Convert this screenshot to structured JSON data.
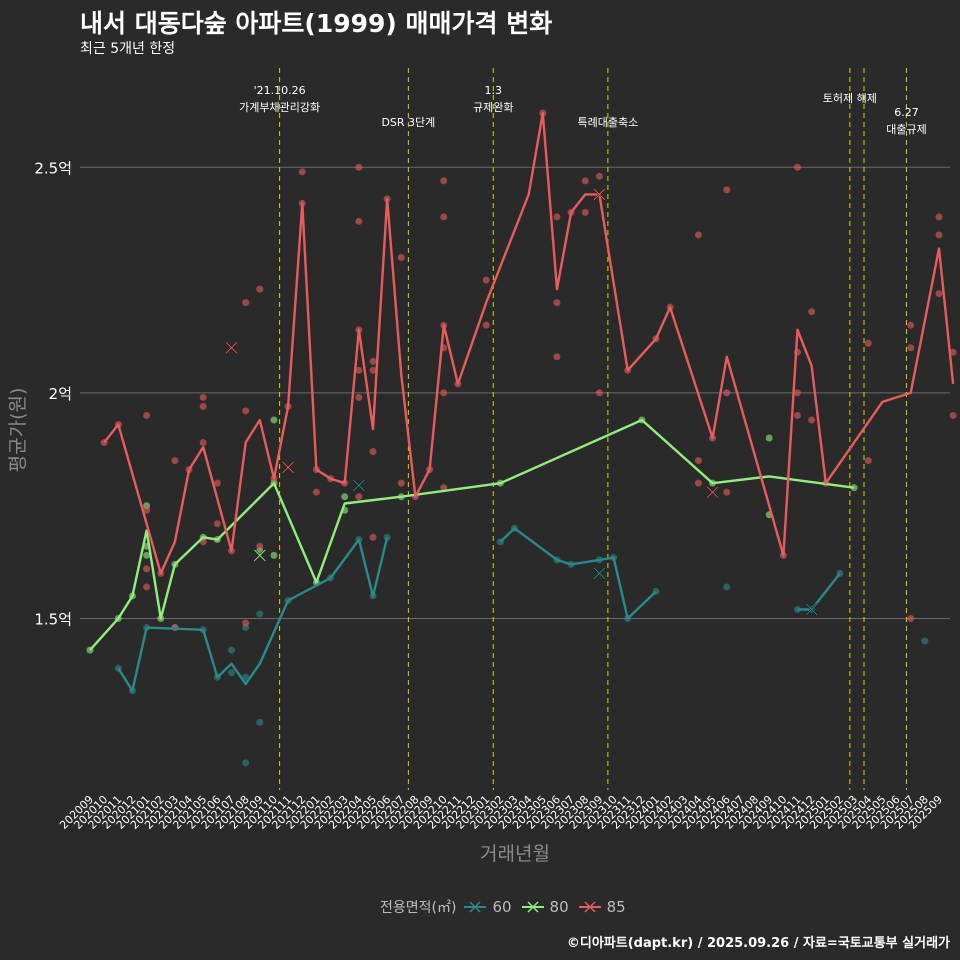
{
  "title": "내서 대동다숲 아파트(1999) 매매가격 변화",
  "subtitle": "최근 5개년 한정",
  "credit": "©디아파트(dapt.kr) / 2025.09.26 / 자료=국토교통부 실거래가",
  "colors": {
    "s60": "#2a8a8a",
    "s80": "#90ee7e",
    "s85": "#e85c5c",
    "event": "#d4d400",
    "grid": "#6a6a6a",
    "bg": "#2b2a2b"
  },
  "chart_data": {
    "type": "line",
    "title": "내서 대동다숲 아파트(1999) 매매가격 변화",
    "subtitle": "최근 5개년 한정",
    "xlabel": "거래년월",
    "ylabel": "평균가(원)",
    "ylim": [
      1.12,
      2.72
    ],
    "yticks": [
      {
        "v": 1.5,
        "label": "1.5억"
      },
      {
        "v": 2.0,
        "label": "2억"
      },
      {
        "v": 2.5,
        "label": "2.5억"
      }
    ],
    "categories": [
      "202009",
      "202010",
      "202011",
      "202012",
      "202101",
      "202102",
      "202103",
      "202104",
      "202105",
      "202106",
      "202107",
      "202108",
      "202109",
      "202110",
      "202111",
      "202112",
      "202201",
      "202202",
      "202203",
      "202204",
      "202205",
      "202206",
      "202207",
      "202208",
      "202209",
      "202210",
      "202211",
      "202212",
      "202301",
      "202302",
      "202303",
      "202304",
      "202305",
      "202306",
      "202307",
      "202308",
      "202309",
      "202310",
      "202311",
      "202312",
      "202401",
      "202402",
      "202403",
      "202404",
      "202405",
      "202406",
      "202407",
      "202408",
      "202409",
      "202410",
      "202411",
      "202412",
      "202501",
      "202502",
      "202503",
      "202504",
      "202505",
      "202506",
      "202507",
      "202508",
      "202509"
    ],
    "legend_title": "전용면적(㎡)",
    "series": [
      {
        "name": "60",
        "key": "s60",
        "line": [
          [
            2,
            1.39
          ],
          [
            3,
            1.34
          ],
          [
            4,
            1.48
          ],
          [
            8,
            1.475
          ],
          [
            9,
            1.37
          ],
          [
            10,
            1.4
          ],
          [
            11,
            1.355
          ],
          [
            12,
            1.4
          ],
          [
            14,
            1.54
          ],
          [
            17,
            1.59
          ],
          [
            19,
            1.675
          ],
          [
            20,
            1.55
          ],
          [
            21,
            1.68
          ],
          [
            null,
            null
          ],
          [
            29,
            1.67
          ],
          [
            30,
            1.7
          ],
          [
            33,
            1.63
          ],
          [
            34,
            1.62
          ],
          [
            36,
            1.63
          ],
          [
            37,
            1.635
          ],
          [
            38,
            1.5
          ],
          [
            40,
            1.56
          ],
          [
            null,
            null
          ],
          [
            50,
            1.52
          ],
          [
            51,
            1.52
          ],
          [
            53,
            1.6
          ]
        ],
        "points": [
          [
            2,
            1.39
          ],
          [
            3,
            1.34
          ],
          [
            4,
            1.48
          ],
          [
            6,
            1.48
          ],
          [
            8,
            1.475
          ],
          [
            9,
            1.37
          ],
          [
            10,
            1.43
          ],
          [
            10,
            1.38
          ],
          [
            11,
            1.48
          ],
          [
            11,
            1.37
          ],
          [
            11,
            1.18
          ],
          [
            12,
            1.51
          ],
          [
            12,
            1.27
          ],
          [
            14,
            1.54
          ],
          [
            17,
            1.59
          ],
          [
            19,
            1.675
          ],
          [
            20,
            1.55
          ],
          [
            21,
            1.68
          ],
          [
            29,
            1.67
          ],
          [
            30,
            1.7
          ],
          [
            33,
            1.63
          ],
          [
            34,
            1.62
          ],
          [
            36,
            1.63
          ],
          [
            37,
            1.635
          ],
          [
            38,
            1.5
          ],
          [
            40,
            1.56
          ],
          [
            45,
            1.57
          ],
          [
            50,
            1.52
          ],
          [
            51,
            1.52
          ],
          [
            53,
            1.6
          ],
          [
            59,
            1.45
          ]
        ],
        "crosses": [
          [
            19,
            1.795
          ],
          [
            36,
            1.6
          ],
          [
            51,
            1.52
          ]
        ]
      },
      {
        "name": "80",
        "key": "s80",
        "line": [
          [
            0,
            1.43
          ],
          [
            2,
            1.5
          ],
          [
            3,
            1.55
          ],
          [
            4,
            1.695
          ],
          [
            5,
            1.5
          ],
          [
            6,
            1.62
          ],
          [
            8,
            1.68
          ],
          [
            9,
            1.675
          ],
          [
            13,
            1.8
          ],
          [
            16,
            1.58
          ],
          [
            18,
            1.755
          ],
          [
            22,
            1.77
          ],
          [
            29,
            1.8
          ],
          [
            39,
            1.94
          ],
          [
            44,
            1.8
          ],
          [
            48,
            1.815
          ],
          [
            54,
            1.79
          ]
        ],
        "points": [
          [
            0,
            1.43
          ],
          [
            2,
            1.5
          ],
          [
            3,
            1.55
          ],
          [
            4,
            1.75
          ],
          [
            4,
            1.66
          ],
          [
            4,
            1.64
          ],
          [
            5,
            1.5
          ],
          [
            6,
            1.62
          ],
          [
            8,
            1.68
          ],
          [
            9,
            1.675
          ],
          [
            12,
            1.65
          ],
          [
            13,
            1.8
          ],
          [
            13,
            1.94
          ],
          [
            13,
            1.64
          ],
          [
            16,
            1.58
          ],
          [
            18,
            1.77
          ],
          [
            18,
            1.74
          ],
          [
            22,
            1.77
          ],
          [
            29,
            1.8
          ],
          [
            39,
            1.94
          ],
          [
            44,
            1.8
          ],
          [
            48,
            1.9
          ],
          [
            48,
            1.73
          ],
          [
            54,
            1.79
          ]
        ],
        "crosses": [
          [
            12,
            1.64
          ]
        ]
      },
      {
        "name": "85",
        "key": "s85",
        "line": [
          [
            1,
            1.89
          ],
          [
            2,
            1.93
          ],
          [
            5,
            1.6
          ],
          [
            6,
            1.67
          ],
          [
            7,
            1.83
          ],
          [
            8,
            1.88
          ],
          [
            10,
            1.65
          ],
          [
            11,
            1.89
          ],
          [
            12,
            1.94
          ],
          [
            13,
            1.81
          ],
          [
            14,
            1.97
          ],
          [
            15,
            2.42
          ],
          [
            16,
            1.83
          ],
          [
            17,
            1.81
          ],
          [
            18,
            1.8
          ],
          [
            19,
            2.14
          ],
          [
            20,
            1.92
          ],
          [
            21,
            2.43
          ],
          [
            22,
            2.04
          ],
          [
            23,
            1.77
          ],
          [
            24,
            1.83
          ],
          [
            25,
            2.15
          ],
          [
            26,
            2.02
          ],
          [
            28,
            2.2
          ],
          [
            31,
            2.44
          ],
          [
            32,
            2.62
          ],
          [
            33,
            2.23
          ],
          [
            34,
            2.4
          ],
          [
            35,
            2.44
          ],
          [
            36,
            2.44
          ],
          [
            38,
            2.05
          ],
          [
            40,
            2.12
          ],
          [
            41,
            2.19
          ],
          [
            44,
            1.9
          ],
          [
            45,
            2.08
          ],
          [
            49,
            1.64
          ],
          [
            50,
            2.14
          ],
          [
            51,
            2.06
          ],
          [
            52,
            1.8
          ],
          [
            56,
            1.98
          ],
          [
            58,
            2.0
          ],
          [
            60,
            2.32
          ],
          [
            61,
            2.02
          ]
        ],
        "points": [
          [
            1,
            1.89
          ],
          [
            2,
            1.93
          ],
          [
            4,
            1.95
          ],
          [
            4,
            1.74
          ],
          [
            4,
            1.57
          ],
          [
            4,
            1.61
          ],
          [
            5,
            1.6
          ],
          [
            6,
            1.85
          ],
          [
            6,
            1.48
          ],
          [
            7,
            1.83
          ],
          [
            8,
            1.99
          ],
          [
            8,
            1.97
          ],
          [
            8,
            1.89
          ],
          [
            8,
            1.67
          ],
          [
            9,
            1.8
          ],
          [
            9,
            1.71
          ],
          [
            10,
            1.65
          ],
          [
            11,
            2.2
          ],
          [
            11,
            1.96
          ],
          [
            11,
            1.49
          ],
          [
            12,
            2.23
          ],
          [
            12,
            1.66
          ],
          [
            13,
            1.81
          ],
          [
            14,
            1.97
          ],
          [
            15,
            2.49
          ],
          [
            15,
            2.42
          ],
          [
            16,
            1.83
          ],
          [
            16,
            1.78
          ],
          [
            17,
            1.81
          ],
          [
            18,
            1.8
          ],
          [
            19,
            2.5
          ],
          [
            19,
            2.38
          ],
          [
            19,
            2.14
          ],
          [
            19,
            2.05
          ],
          [
            19,
            1.99
          ],
          [
            19,
            1.77
          ],
          [
            20,
            2.07
          ],
          [
            20,
            2.05
          ],
          [
            20,
            1.87
          ],
          [
            20,
            1.68
          ],
          [
            21,
            2.43
          ],
          [
            22,
            2.3
          ],
          [
            22,
            1.8
          ],
          [
            23,
            1.77
          ],
          [
            24,
            1.83
          ],
          [
            25,
            2.47
          ],
          [
            25,
            2.39
          ],
          [
            25,
            2.15
          ],
          [
            25,
            2.1
          ],
          [
            25,
            2.0
          ],
          [
            25,
            1.79
          ],
          [
            26,
            2.02
          ],
          [
            28,
            2.25
          ],
          [
            28,
            2.15
          ],
          [
            32,
            2.62
          ],
          [
            33,
            2.39
          ],
          [
            33,
            2.2
          ],
          [
            33,
            2.08
          ],
          [
            34,
            2.4
          ],
          [
            35,
            2.47
          ],
          [
            35,
            2.4
          ],
          [
            36,
            2.48
          ],
          [
            36,
            2.0
          ],
          [
            38,
            2.05
          ],
          [
            40,
            2.12
          ],
          [
            41,
            2.19
          ],
          [
            43,
            2.35
          ],
          [
            43,
            1.85
          ],
          [
            43,
            1.8
          ],
          [
            44,
            1.9
          ],
          [
            45,
            2.45
          ],
          [
            45,
            2.0
          ],
          [
            45,
            1.78
          ],
          [
            49,
            1.64
          ],
          [
            50,
            2.5
          ],
          [
            50,
            2.09
          ],
          [
            50,
            2.0
          ],
          [
            50,
            1.95
          ],
          [
            51,
            2.18
          ],
          [
            51,
            1.94
          ],
          [
            52,
            1.8
          ],
          [
            55,
            2.11
          ],
          [
            55,
            1.85
          ],
          [
            58,
            2.15
          ],
          [
            58,
            2.1
          ],
          [
            58,
            1.5
          ],
          [
            60,
            2.39
          ],
          [
            60,
            2.35
          ],
          [
            60,
            2.22
          ],
          [
            61,
            2.09
          ],
          [
            61,
            1.95
          ]
        ],
        "crosses": [
          [
            10,
            2.1
          ],
          [
            14,
            1.835
          ],
          [
            36,
            2.44
          ],
          [
            44,
            1.78
          ]
        ]
      }
    ],
    "events": [
      {
        "x": 13.4,
        "lines": [
          "'21.10.26",
          "가계부채관리강화"
        ],
        "row": 0
      },
      {
        "x": 22.5,
        "lines": [
          "DSR 3단계"
        ],
        "row": 2
      },
      {
        "x": 28.5,
        "lines": [
          "1.3",
          "규제완화"
        ],
        "row": 0
      },
      {
        "x": 36.6,
        "lines": [
          "특례대출축소"
        ],
        "row": 2
      },
      {
        "x": 53.7,
        "lines": [
          "토허제 해제"
        ],
        "row": 1
      },
      {
        "x": 54.7,
        "lines": [],
        "row": 1
      },
      {
        "x": 57.7,
        "lines": [
          "6.27",
          "대출규제"
        ],
        "row": 3
      }
    ]
  }
}
